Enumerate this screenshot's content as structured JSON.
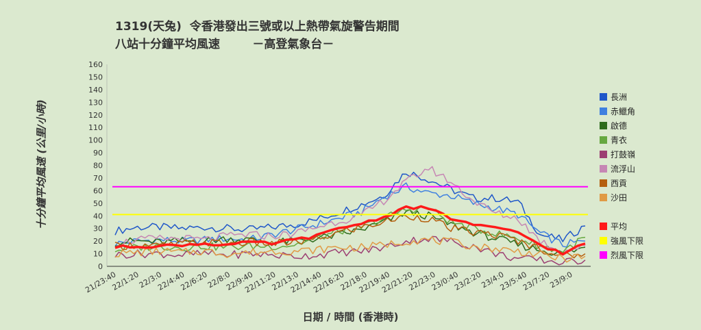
{
  "title_line1": "1319(天兔)  令香港發出三號或以上熱帶氣旋警告期間",
  "title_line2": "八站十分鐘平均風速        －高登氣象台－",
  "chart_data": {
    "type": "line",
    "ylabel": "十分鐘平均風速  (公里/小時)",
    "xlabel": "日期 / 時間 (香港時)",
    "ylim": [
      0,
      160
    ],
    "yticks": [
      0,
      10,
      20,
      30,
      40,
      50,
      60,
      70,
      80,
      90,
      100,
      110,
      120,
      130,
      140,
      150,
      160
    ],
    "x_tick_labels": [
      "21/23:40",
      "22/1:20",
      "22/3:0",
      "22/4:40",
      "22/6:20",
      "22/8:0",
      "22/9:40",
      "22/11:20",
      "22/13:0",
      "22/14:40",
      "22/16:20",
      "22/18:0",
      "22/19:40",
      "22/21:20",
      "22/23:0",
      "23/0:40",
      "23/2:20",
      "23/4:0",
      "23/5:40",
      "23/7:20",
      "23/9:0"
    ],
    "x_points": [
      "21/23:40",
      "22/1:20",
      "22/3:0",
      "22/4:40",
      "22/6:20",
      "22/8:0",
      "22/9:40",
      "22/11:20",
      "22/13:0",
      "22/14:40",
      "22/16:20",
      "22/18:0",
      "22/19:40",
      "22/21:20",
      "22/23:0",
      "23/0:40",
      "23/2:20",
      "23/4:0",
      "23/5:40",
      "23/7:20",
      "23/9:0",
      "23/10:0"
    ],
    "series": [
      {
        "name": "長洲",
        "color": "#1f57c9",
        "width": 1.5,
        "values": [
          28,
          31,
          31,
          30,
          31,
          30,
          29,
          31,
          33,
          37,
          43,
          49,
          56,
          75,
          69,
          61,
          54,
          54,
          51,
          25,
          21,
          32
        ]
      },
      {
        "name": "赤鱲角",
        "color": "#3f80e0",
        "width": 1.5,
        "values": [
          18,
          20,
          21,
          20,
          21,
          22,
          21,
          25,
          29,
          33,
          38,
          43,
          55,
          63,
          58,
          56,
          50,
          46,
          41,
          26,
          17,
          20
        ]
      },
      {
        "name": "啟德",
        "color": "#2e6b1c",
        "width": 1.5,
        "values": [
          19,
          20,
          19,
          20,
          20,
          22,
          21,
          19,
          20,
          22,
          25,
          29,
          35,
          43,
          40,
          33,
          27,
          22,
          17,
          13,
          10,
          15
        ]
      },
      {
        "name": "青衣",
        "color": "#66a840",
        "width": 1.5,
        "values": [
          13,
          15,
          16,
          15,
          16,
          15,
          16,
          16,
          17,
          22,
          28,
          31,
          38,
          45,
          46,
          35,
          30,
          26,
          22,
          16,
          12,
          23
        ]
      },
      {
        "name": "打鼓嶺",
        "color": "#9c3e72",
        "width": 1.5,
        "values": [
          9,
          10,
          10,
          9,
          10,
          9,
          10,
          9,
          8,
          9,
          11,
          12,
          15,
          20,
          22,
          20,
          16,
          10,
          6,
          5,
          3,
          5
        ]
      },
      {
        "name": "流浮山",
        "color": "#c687b4",
        "width": 1.5,
        "values": [
          18,
          21,
          22,
          22,
          21,
          24,
          25,
          24,
          26,
          31,
          36,
          40,
          52,
          67,
          78,
          67,
          52,
          42,
          38,
          20,
          12,
          16
        ]
      },
      {
        "name": "西貢",
        "color": "#b5600f",
        "width": 1.5,
        "values": [
          16,
          17,
          16,
          18,
          19,
          18,
          19,
          18,
          19,
          21,
          27,
          31,
          35,
          40,
          38,
          30,
          27,
          25,
          20,
          14,
          8,
          10
        ]
      },
      {
        "name": "沙田",
        "color": "#e09a45",
        "width": 1.5,
        "values": [
          10,
          11,
          12,
          11,
          12,
          10,
          11,
          12,
          12,
          13,
          15,
          15,
          17,
          20,
          21,
          19,
          16,
          14,
          12,
          9,
          6,
          8
        ]
      },
      {
        "name": "平均",
        "color": "#ff1a1a",
        "width": 3.5,
        "values": [
          15,
          16,
          16,
          17,
          18,
          17,
          19,
          18,
          21,
          24,
          30,
          34,
          39,
          47,
          46,
          38,
          33,
          30,
          27,
          17,
          10,
          18
        ]
      },
      {
        "name": "強風下限",
        "color": "#ffff00",
        "width": 2,
        "values": [
          41,
          41,
          41,
          41,
          41,
          41,
          41,
          41,
          41,
          41,
          41,
          41,
          41,
          41,
          41,
          41,
          41,
          41,
          41,
          41,
          41,
          41
        ]
      },
      {
        "name": "烈風下限",
        "color": "#ff00ff",
        "width": 2,
        "values": [
          63,
          63,
          63,
          63,
          63,
          63,
          63,
          63,
          63,
          63,
          63,
          63,
          63,
          63,
          63,
          63,
          63,
          63,
          63,
          63,
          63,
          63
        ]
      }
    ]
  }
}
